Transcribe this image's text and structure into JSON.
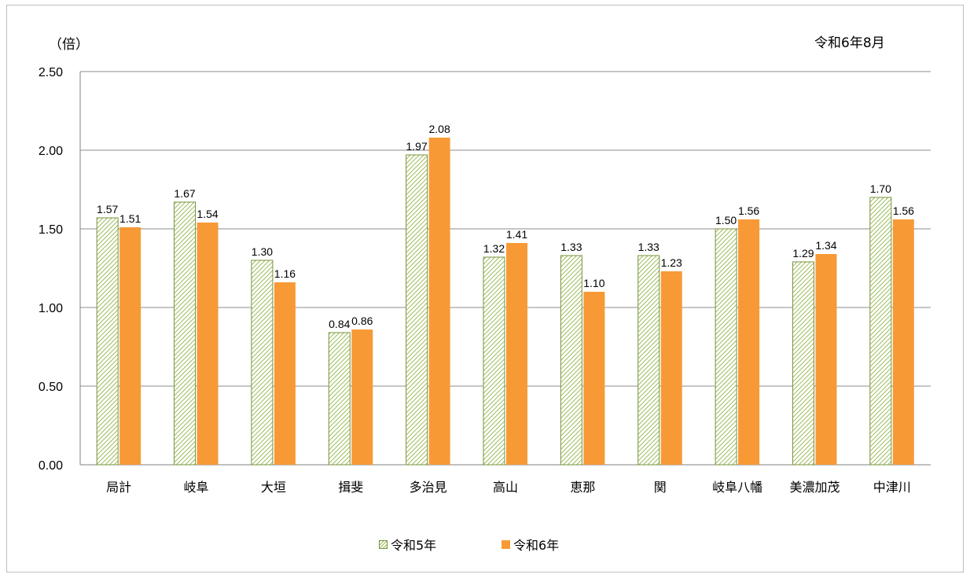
{
  "chart_data": {
    "type": "bar",
    "unit_label": "（倍）",
    "date_label": "令和6年8月",
    "categories": [
      "局計",
      "岐阜",
      "大垣",
      "揖斐",
      "多治見",
      "高山",
      "恵那",
      "関",
      "岐阜八幡",
      "美濃加茂",
      "中津川"
    ],
    "series": [
      {
        "name": "令和5年",
        "values": [
          1.57,
          1.67,
          1.3,
          0.84,
          1.97,
          1.32,
          1.33,
          1.33,
          1.5,
          1.29,
          1.7
        ],
        "color": "#9bbb59",
        "pattern": "diagonal-hatch"
      },
      {
        "name": "令和6年",
        "values": [
          1.51,
          1.54,
          1.16,
          0.86,
          2.08,
          1.41,
          1.1,
          1.23,
          1.56,
          1.34,
          1.56
        ],
        "color": "#f79a36",
        "pattern": "solid"
      }
    ],
    "yticks": [
      "0.00",
      "0.50",
      "1.00",
      "1.50",
      "2.00",
      "2.50"
    ],
    "ylim": [
      0,
      2.5
    ],
    "grid": true,
    "legend_position": "bottom"
  }
}
